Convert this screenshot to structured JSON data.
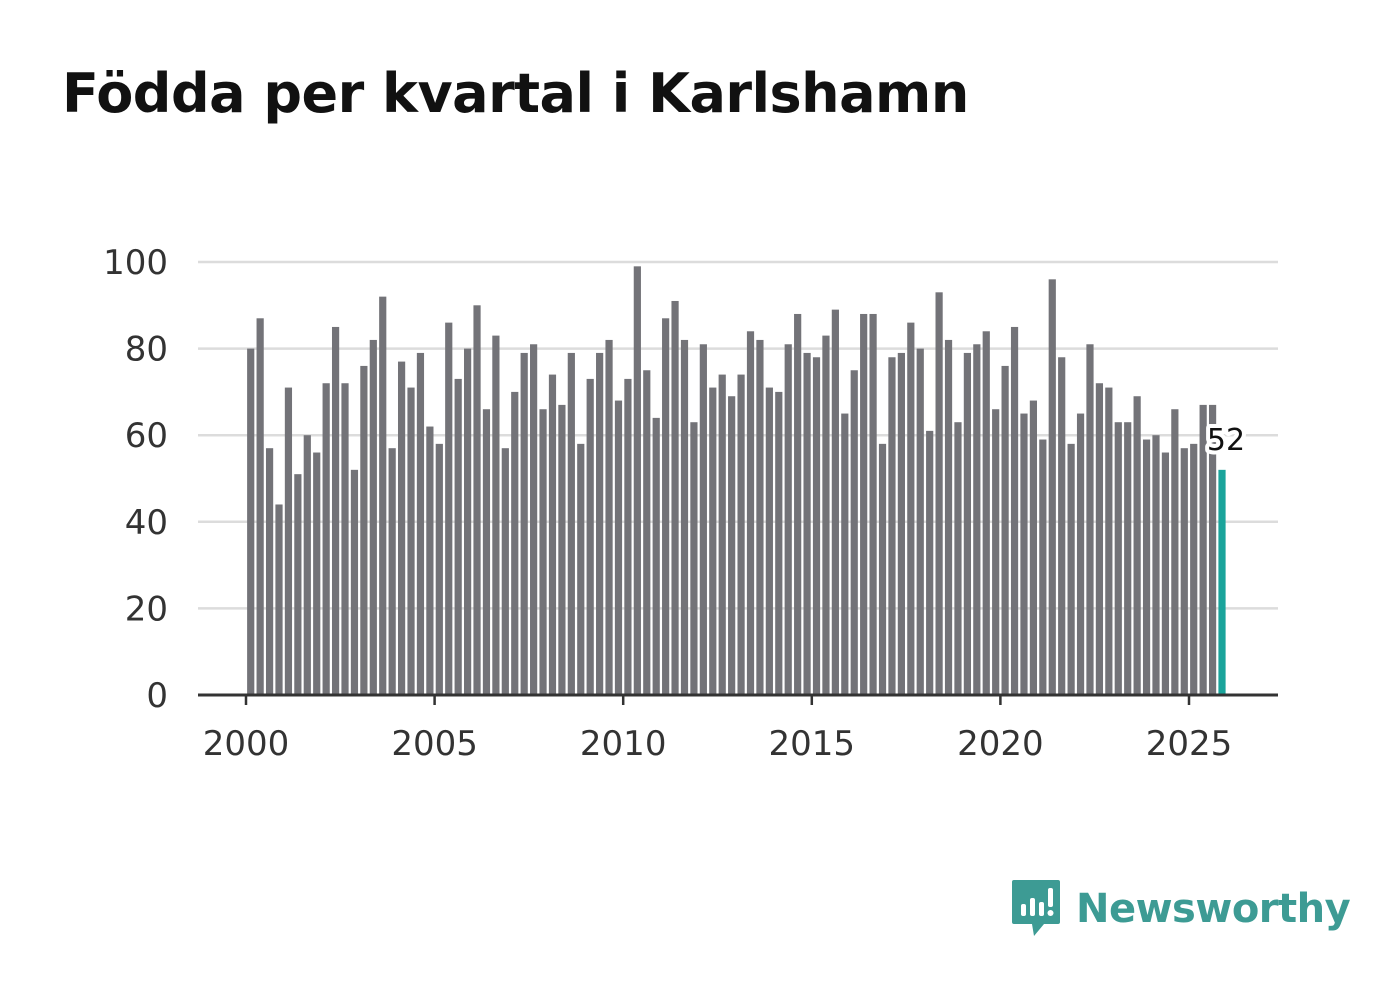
{
  "title": "Födda per kvartal i Karlshamn",
  "brand": {
    "name": "Newsworthy",
    "icon": "newsworthy-logo-icon",
    "color": "#3d9b94"
  },
  "chart_data": {
    "type": "bar",
    "title": "Födda per kvartal i Karlshamn",
    "xlabel": "",
    "ylabel": "",
    "ylim": [
      0,
      100
    ],
    "yticks": [
      0,
      20,
      40,
      60,
      80,
      100
    ],
    "xticks": [
      "2000",
      "2005",
      "2010",
      "2015",
      "2020",
      "2025"
    ],
    "x_start_year": 2000,
    "x_end_year": 2027.3,
    "grid": true,
    "bar_color": "#737378",
    "highlight_color": "#1aa49b",
    "highlight_label": "52",
    "categories": [
      "2000 K1",
      "2000 K2",
      "2000 K3",
      "2000 K4",
      "2001 K1",
      "2001 K2",
      "2001 K3",
      "2001 K4",
      "2002 K1",
      "2002 K2",
      "2002 K3",
      "2002 K4",
      "2003 K1",
      "2003 K2",
      "2003 K3",
      "2003 K4",
      "2004 K1",
      "2004 K2",
      "2004 K3",
      "2004 K4",
      "2005 K1",
      "2005 K2",
      "2005 K3",
      "2005 K4",
      "2006 K1",
      "2006 K2",
      "2006 K3",
      "2006 K4",
      "2007 K1",
      "2007 K2",
      "2007 K3",
      "2007 K4",
      "2008 K1",
      "2008 K2",
      "2008 K3",
      "2008 K4",
      "2009 K1",
      "2009 K2",
      "2009 K3",
      "2009 K4",
      "2010 K1",
      "2010 K2",
      "2010 K3",
      "2010 K4",
      "2011 K1",
      "2011 K2",
      "2011 K3",
      "2011 K4",
      "2012 K1",
      "2012 K2",
      "2012 K3",
      "2012 K4",
      "2013 K1",
      "2013 K2",
      "2013 K3",
      "2013 K4",
      "2014 K1",
      "2014 K2",
      "2014 K3",
      "2014 K4",
      "2015 K1",
      "2015 K2",
      "2015 K3",
      "2015 K4",
      "2016 K1",
      "2016 K2",
      "2016 K3",
      "2016 K4",
      "2017 K1",
      "2017 K2",
      "2017 K3",
      "2017 K4",
      "2018 K1",
      "2018 K2",
      "2018 K3",
      "2018 K4",
      "2019 K1",
      "2019 K2",
      "2019 K3",
      "2019 K4",
      "2020 K1",
      "2020 K2",
      "2020 K3",
      "2020 K4",
      "2021 K1",
      "2021 K2",
      "2021 K3",
      "2021 K4",
      "2022 K1",
      "2022 K2",
      "2022 K3",
      "2022 K4",
      "2023 K1",
      "2023 K2",
      "2023 K3",
      "2023 K4",
      "2024 K1",
      "2024 K2",
      "2024 K3",
      "2024 K4",
      "2025 K1",
      "2025 K2",
      "2025 K3",
      "2025 K4"
    ],
    "values": [
      80,
      87,
      57,
      44,
      71,
      51,
      60,
      56,
      72,
      85,
      72,
      52,
      76,
      82,
      92,
      57,
      77,
      71,
      79,
      62,
      58,
      86,
      73,
      80,
      90,
      66,
      83,
      57,
      70,
      79,
      81,
      66,
      74,
      67,
      79,
      58,
      73,
      79,
      82,
      68,
      73,
      99,
      75,
      64,
      87,
      91,
      82,
      63,
      81,
      71,
      74,
      69,
      74,
      84,
      82,
      71,
      70,
      81,
      88,
      79,
      78,
      83,
      89,
      65,
      75,
      88,
      88,
      58,
      78,
      79,
      86,
      80,
      61,
      93,
      82,
      63,
      79,
      81,
      84,
      66,
      76,
      85,
      65,
      68,
      59,
      96,
      78,
      58,
      65,
      81,
      72,
      71,
      63,
      63,
      69,
      59,
      60,
      56,
      66,
      57,
      58,
      67,
      67,
      52
    ]
  }
}
